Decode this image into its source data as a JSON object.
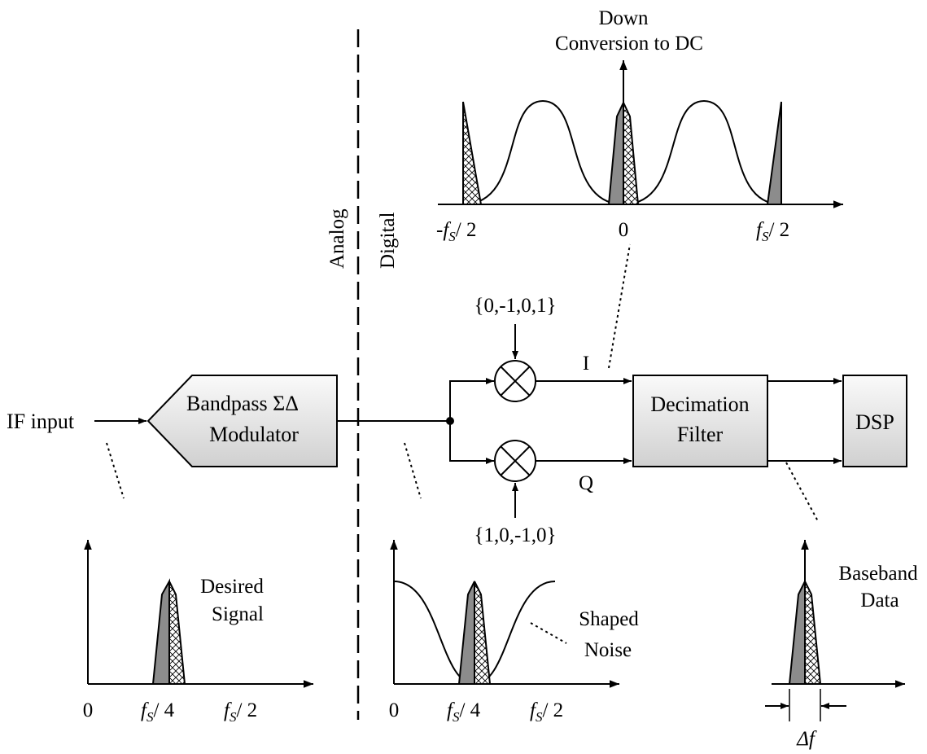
{
  "labels": {
    "if_input": "IF input",
    "modulator_line1": "Bandpass ΣΔ",
    "modulator_line2": "Modulator",
    "analog": "Analog",
    "digital": "Digital",
    "top_title_line1": "Down",
    "top_title_line2": "Conversion to DC",
    "seq_top": "{0,-1,0,1}",
    "seq_bottom": "{1,0,-1,0}",
    "i_channel": "I",
    "q_channel": "Q",
    "decimation_line1": "Decimation",
    "decimation_line2": "Filter",
    "dsp": "DSP",
    "desired_line1": "Desired",
    "desired_line2": "Signal",
    "shaped_line1": "Shaped",
    "shaped_line2": "Noise",
    "baseband_line1": "Baseband",
    "baseband_line2": "Data",
    "delta_f": "Δf"
  },
  "ticks": {
    "zero": "0",
    "fs": "f",
    "fs_sub": "S",
    "quarter": "/ 4",
    "half": "/ 2",
    "neg": "-"
  },
  "colors": {
    "stroke": "#000000",
    "block_fill_light": "#fafafa",
    "block_fill_dark": "#d0d0d0",
    "signal_gray": "#8c8c8c",
    "background": "#ffffff"
  }
}
